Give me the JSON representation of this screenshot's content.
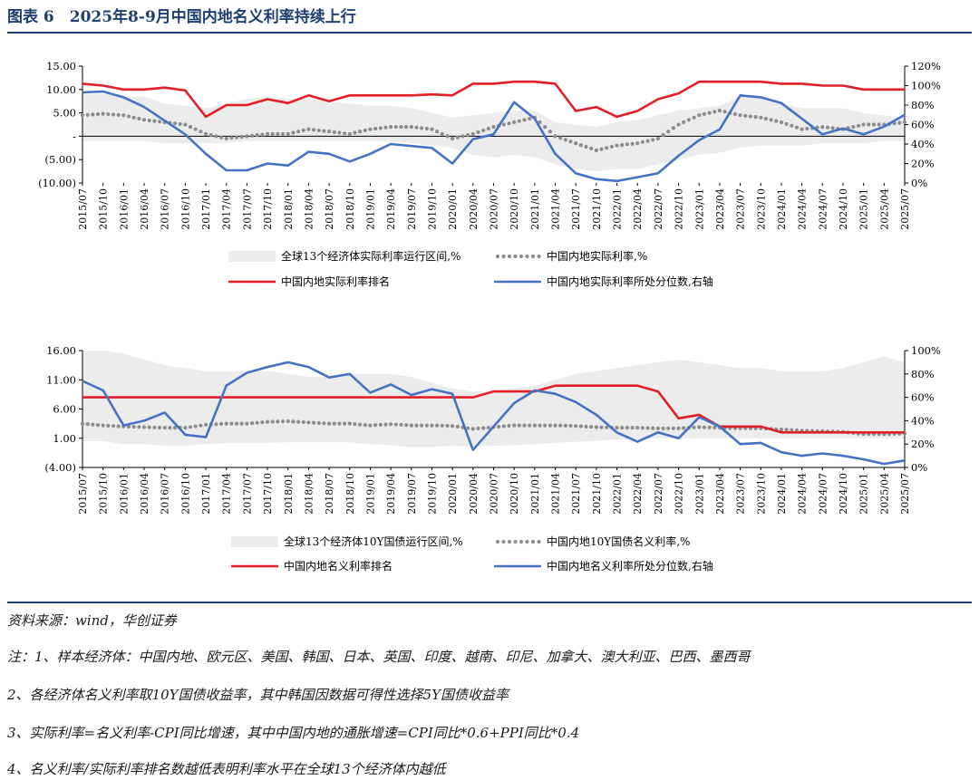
{
  "figure_title": "图表 6　2025年8-9月中国内地名义利率持续上行",
  "source": "资料来源：wind，华创证券",
  "notes": [
    "注：1、样本经济体：中国内地、欧元区、美国、韩国、日本、英国、印度、越南、印尼、加拿大、澳大利亚、巴西、墨西哥",
    "2、各经济体名义利率取10Y国债收益率，其中韩国因数据可得性选择5Y国债收益率",
    "3、实际利率=名义利率-CPI同比增速，其中中国内地的通胀增速=CPI同比*0.6+PPI同比*0.4",
    "4、名义利率/实际利率排名数越低表明利率水平在全球13个经济体内越低"
  ],
  "colors": {
    "rank": "#e41e26",
    "percentile": "#4472c4",
    "dots": "#8c8c8c",
    "band": "#ececec",
    "title": "#1f3f73"
  },
  "chart_data": [
    {
      "type": "line",
      "x_ticks": [
        "2015/07",
        "2015/10",
        "2016/01",
        "2016/04",
        "2016/07",
        "2016/10",
        "2017/01",
        "2017/04",
        "2017/07",
        "2017/10",
        "2018/01",
        "2018/04",
        "2018/07",
        "2018/10",
        "2019/01",
        "2019/04",
        "2019/07",
        "2019/10",
        "2020/01",
        "2020/04",
        "2020/07",
        "2020/10",
        "2021/01",
        "2021/04",
        "2021/07",
        "2021/10",
        "2022/01",
        "2022/04",
        "2022/07",
        "2022/10",
        "2023/01",
        "2023/04",
        "2023/07",
        "2023/10",
        "2024/01",
        "2024/04",
        "2024/07",
        "2024/10",
        "2025/01",
        "2025/04",
        "2025/07"
      ],
      "y_left_ticks": [
        "15.00",
        "10.00",
        "5.00",
        "-",
        "(5.00)",
        "(10.00)"
      ],
      "y_left_range": [
        -10,
        15
      ],
      "y_right_ticks": [
        "120%",
        "100%",
        "80%",
        "60%",
        "40%",
        "20%",
        "0%"
      ],
      "y_right_range": [
        0,
        120
      ],
      "legend": [
        {
          "label": "全球13个经济体实际利率运行区间,%",
          "kind": "band"
        },
        {
          "label": "中国内地实际利率,%",
          "kind": "dots"
        },
        {
          "label": "中国内地实际利率排名",
          "kind": "rank"
        },
        {
          "label": "中国内地实际利率所处分位数,右轴",
          "kind": "percentile"
        }
      ],
      "series": [
        {
          "name": "全球13个经济体实际利率运行区间,%",
          "axis": "left",
          "kind": "band",
          "upper": [
            9,
            9,
            8.5,
            8.5,
            7,
            6.5,
            6,
            7,
            8,
            8.5,
            8,
            8,
            7.5,
            7,
            6.5,
            6.5,
            6,
            5,
            4,
            4.5,
            5,
            5.5,
            5.5,
            3,
            2.5,
            2,
            3,
            3.5,
            4.5,
            5.5,
            6,
            6.5,
            8.5,
            8,
            7,
            6,
            6,
            6,
            5,
            4.5,
            4
          ],
          "lower": [
            -1,
            -1,
            -1,
            -1,
            -1.5,
            -1.5,
            -1.5,
            -1.5,
            -1,
            -1,
            -1,
            -1,
            -1,
            -1,
            -1,
            -1,
            -1.5,
            -2,
            -2.5,
            -4,
            -4.5,
            -4,
            -4.5,
            -6,
            -7,
            -7.5,
            -7,
            -7,
            -6,
            -5,
            -4,
            -3.5,
            -2.5,
            -2,
            -2,
            -2,
            -1.5,
            -1.5,
            -1.5,
            -1,
            -1
          ]
        },
        {
          "name": "中国内地实际利率,%",
          "axis": "left",
          "kind": "dots",
          "values": [
            4.5,
            4.8,
            4.5,
            3.5,
            3,
            2.5,
            0.5,
            -0.5,
            0,
            0.5,
            0.5,
            1.5,
            1,
            0.5,
            1.5,
            2,
            2,
            1.5,
            -0.5,
            0.5,
            2,
            3,
            4,
            0,
            -1.5,
            -3,
            -2,
            -1.5,
            -0.5,
            2.5,
            4.5,
            5.5,
            4.5,
            4,
            3,
            1.5,
            2,
            1.5,
            2.5,
            2.5,
            3
          ]
        },
        {
          "name": "中国内地实际利率排名",
          "axis": "right",
          "kind": "rank",
          "values": [
            102,
            100,
            96,
            96,
            98,
            95,
            68,
            80,
            80,
            86,
            82,
            90,
            84,
            90,
            90,
            90,
            90,
            91,
            90,
            102,
            102,
            104,
            104,
            102,
            74,
            78,
            68,
            74,
            86,
            92,
            104,
            104,
            104,
            104,
            102,
            102,
            100,
            100,
            96,
            96,
            96
          ]
        },
        {
          "name": "中国内地实际利率所处分位数,右轴",
          "axis": "right",
          "kind": "percentile",
          "values": [
            93,
            94,
            88,
            78,
            64,
            50,
            30,
            13,
            13,
            20,
            18,
            32,
            30,
            22,
            30,
            40,
            38,
            36,
            20,
            45,
            50,
            83,
            66,
            30,
            10,
            4,
            2,
            6,
            10,
            28,
            44,
            55,
            90,
            88,
            82,
            66,
            50,
            56,
            50,
            58,
            70
          ]
        }
      ]
    },
    {
      "type": "line",
      "x_ticks": [
        "2015/07",
        "2015/10",
        "2016/01",
        "2016/04",
        "2016/07",
        "2016/10",
        "2017/01",
        "2017/04",
        "2017/07",
        "2017/10",
        "2018/01",
        "2018/04",
        "2018/07",
        "2018/10",
        "2019/01",
        "2019/04",
        "2019/07",
        "2019/10",
        "2020/01",
        "2020/04",
        "2020/07",
        "2020/10",
        "2021/01",
        "2021/04",
        "2021/07",
        "2021/10",
        "2022/01",
        "2022/04",
        "2022/07",
        "2022/10",
        "2023/01",
        "2023/04",
        "2023/07",
        "2023/10",
        "2024/01",
        "2024/04",
        "2024/07",
        "2024/10",
        "2025/01",
        "2025/04",
        "2025/07"
      ],
      "y_left_ticks": [
        "16.00",
        "11.00",
        "6.00",
        "1.00",
        "(4.00)"
      ],
      "y_left_range": [
        -4,
        16
      ],
      "y_right_ticks": [
        "100%",
        "80%",
        "60%",
        "40%",
        "20%",
        "0%"
      ],
      "y_right_range": [
        0,
        100
      ],
      "legend": [
        {
          "label": "全球13个经济体10Y国债运行区间,%",
          "kind": "band"
        },
        {
          "label": "中国内地10Y国债名义利率,%",
          "kind": "dots"
        },
        {
          "label": "中国内地名义利率排名",
          "kind": "rank"
        },
        {
          "label": "中国内地名义利率所处分位数,右轴",
          "kind": "percentile"
        }
      ],
      "series": [
        {
          "name": "全球13个经济体10Y国债运行区间,%",
          "axis": "left",
          "kind": "band",
          "upper": [
            16,
            16,
            15.5,
            14.5,
            13.5,
            13,
            12.5,
            12.5,
            12.5,
            12.5,
            12,
            11.5,
            11.5,
            12,
            12,
            12,
            11.5,
            10.5,
            9.5,
            9,
            9,
            9.5,
            10,
            11,
            12,
            12.5,
            13,
            13.5,
            14,
            14.5,
            14,
            13.5,
            13,
            13,
            12.5,
            12.5,
            12.5,
            13,
            14,
            15,
            14
          ],
          "lower": [
            0.5,
            0.5,
            0,
            0,
            -0.3,
            -0.3,
            0,
            0.2,
            0.2,
            0.2,
            0.3,
            0.3,
            0.3,
            0.3,
            0,
            -0.2,
            -0.5,
            -0.5,
            -0.3,
            -0.4,
            -0.3,
            -0.2,
            0,
            0.2,
            0.4,
            0.5,
            0.8,
            0.8,
            1,
            1,
            1,
            1,
            1,
            1,
            1,
            1,
            1,
            1,
            1,
            1,
            1
          ]
        },
        {
          "name": "中国内地10Y国债名义利率,%",
          "axis": "left",
          "kind": "dots",
          "values": [
            3.5,
            3.2,
            3,
            2.9,
            2.8,
            2.8,
            3.3,
            3.5,
            3.5,
            3.8,
            3.9,
            3.7,
            3.5,
            3.5,
            3.2,
            3.4,
            3.2,
            3.2,
            3.1,
            2.6,
            2.9,
            3.2,
            3.2,
            3.2,
            3.1,
            2.9,
            2.8,
            2.8,
            2.7,
            2.7,
            2.9,
            2.8,
            2.7,
            2.7,
            2.5,
            2.3,
            2.2,
            2.1,
            1.7,
            1.7,
            1.8
          ]
        },
        {
          "name": "中国内地名义利率排名",
          "axis": "right",
          "kind": "rank",
          "values": [
            60,
            60,
            60,
            60,
            60,
            60,
            60,
            60,
            60,
            60,
            60,
            60,
            60,
            60,
            60,
            60,
            60,
            60,
            60,
            60,
            65,
            65,
            65,
            70,
            70,
            70,
            70,
            70,
            65,
            42,
            45,
            35,
            35,
            35,
            30,
            30,
            30,
            30,
            30,
            30,
            30
          ]
        },
        {
          "name": "中国内地名义利率所处分位数,右轴",
          "axis": "right",
          "kind": "percentile",
          "values": [
            74,
            66,
            36,
            40,
            47,
            28,
            26,
            70,
            81,
            86,
            90,
            86,
            77,
            80,
            64,
            71,
            62,
            67,
            63,
            15,
            35,
            55,
            66,
            63,
            56,
            45,
            30,
            22,
            30,
            25,
            43,
            35,
            20,
            21,
            13,
            10,
            12,
            10,
            7,
            3,
            6
          ]
        }
      ]
    }
  ]
}
